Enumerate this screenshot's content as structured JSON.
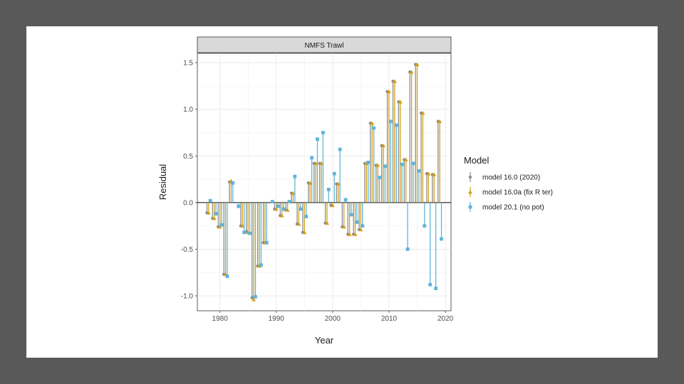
{
  "chart_data": {
    "type": "lollipop",
    "facet_title": "NMFS Trawl",
    "xlabel": "Year",
    "ylabel": "Residual",
    "xlim": [
      1976,
      2021
    ],
    "ylim": [
      -1.16,
      1.6
    ],
    "x_ticks": [
      1980,
      1990,
      2000,
      2010,
      2020
    ],
    "y_ticks": [
      -1.0,
      -0.5,
      0.0,
      0.5,
      1.0,
      1.5
    ],
    "y_tick_labels": [
      "-1.0",
      "-0.5",
      "0.0",
      "0.5",
      "1.0",
      "1.5"
    ],
    "x_tick_labels": [
      "1980",
      "1990",
      "2000",
      "2010",
      "2020"
    ],
    "legend_title": "Model",
    "series": [
      {
        "name": "model 16.0 (2020)",
        "color": "#8c8c8c",
        "shape": "circle",
        "offset": -0.3,
        "points": [
          [
            1978,
            -0.11
          ],
          [
            1979,
            -0.17
          ],
          [
            1980,
            -0.26
          ],
          [
            1981,
            -0.77
          ],
          [
            1982,
            0.22
          ],
          [
            1984,
            -0.25
          ],
          [
            1985,
            -0.31
          ],
          [
            1986,
            -1.02
          ],
          [
            1987,
            -0.68
          ],
          [
            1988,
            -0.43
          ],
          [
            1990,
            -0.07
          ],
          [
            1991,
            -0.14
          ],
          [
            1992,
            -0.08
          ],
          [
            1993,
            0.1
          ],
          [
            1994,
            -0.23
          ],
          [
            1995,
            -0.32
          ],
          [
            1996,
            0.21
          ],
          [
            1997,
            0.42
          ],
          [
            1998,
            0.42
          ],
          [
            1999,
            -0.22
          ],
          [
            2000,
            -0.03
          ],
          [
            2001,
            0.2
          ],
          [
            2002,
            -0.26
          ],
          [
            2003,
            -0.34
          ],
          [
            2004,
            -0.34
          ],
          [
            2005,
            -0.29
          ],
          [
            2006,
            0.42
          ],
          [
            2007,
            0.85
          ],
          [
            2008,
            0.4
          ],
          [
            2009,
            0.61
          ],
          [
            2010,
            1.19
          ],
          [
            2011,
            1.3
          ],
          [
            2012,
            1.08
          ],
          [
            2013,
            0.46
          ],
          [
            2014,
            1.4
          ],
          [
            2015,
            1.48
          ],
          [
            2016,
            0.96
          ],
          [
            2017,
            0.31
          ],
          [
            2018,
            0.3
          ],
          [
            2019,
            0.87
          ]
        ]
      },
      {
        "name": "model 16.0a (fix R ter)",
        "color": "#d4a017",
        "shape": "triangle",
        "offset": 0,
        "points": [
          [
            1978,
            -0.11
          ],
          [
            1979,
            -0.17
          ],
          [
            1980,
            -0.26
          ],
          [
            1981,
            -0.77
          ],
          [
            1982,
            0.23
          ],
          [
            1984,
            -0.25
          ],
          [
            1985,
            -0.32
          ],
          [
            1986,
            -1.04
          ],
          [
            1987,
            -0.68
          ],
          [
            1988,
            -0.43
          ],
          [
            1990,
            -0.07
          ],
          [
            1991,
            -0.14
          ],
          [
            1992,
            -0.08
          ],
          [
            1993,
            0.1
          ],
          [
            1994,
            -0.23
          ],
          [
            1995,
            -0.32
          ],
          [
            1996,
            0.21
          ],
          [
            1997,
            0.42
          ],
          [
            1998,
            0.42
          ],
          [
            1999,
            -0.22
          ],
          [
            2000,
            -0.03
          ],
          [
            2001,
            0.2
          ],
          [
            2002,
            -0.26
          ],
          [
            2003,
            -0.34
          ],
          [
            2004,
            -0.34
          ],
          [
            2005,
            -0.29
          ],
          [
            2006,
            0.42
          ],
          [
            2007,
            0.85
          ],
          [
            2008,
            0.4
          ],
          [
            2009,
            0.61
          ],
          [
            2010,
            1.19
          ],
          [
            2011,
            1.3
          ],
          [
            2012,
            1.08
          ],
          [
            2013,
            0.46
          ],
          [
            2014,
            1.4
          ],
          [
            2015,
            1.48
          ],
          [
            2016,
            0.96
          ],
          [
            2017,
            0.31
          ],
          [
            2018,
            0.3
          ],
          [
            2019,
            0.87
          ]
        ]
      },
      {
        "name": "model 20.1 (no pot)",
        "color": "#5fb4d9",
        "shape": "square",
        "offset": 0.3,
        "points": [
          [
            1978,
            0.02
          ],
          [
            1979,
            -0.12
          ],
          [
            1980,
            -0.24
          ],
          [
            1981,
            -0.79
          ],
          [
            1982,
            0.21
          ],
          [
            1983,
            -0.04
          ],
          [
            1984,
            -0.32
          ],
          [
            1985,
            -0.33
          ],
          [
            1986,
            -1.01
          ],
          [
            1987,
            -0.67
          ],
          [
            1988,
            -0.43
          ],
          [
            1989,
            0.01
          ],
          [
            1990,
            -0.04
          ],
          [
            1991,
            -0.07
          ],
          [
            1992,
            0.01
          ],
          [
            1993,
            0.28
          ],
          [
            1994,
            -0.07
          ],
          [
            1995,
            -0.15
          ],
          [
            1996,
            0.48
          ],
          [
            1997,
            0.68
          ],
          [
            1998,
            0.75
          ],
          [
            1999,
            0.14
          ],
          [
            2000,
            0.31
          ],
          [
            2001,
            0.57
          ],
          [
            2002,
            0.03
          ],
          [
            2003,
            -0.13
          ],
          [
            2004,
            -0.21
          ],
          [
            2005,
            -0.25
          ],
          [
            2006,
            0.43
          ],
          [
            2007,
            0.8
          ],
          [
            2008,
            0.27
          ],
          [
            2009,
            0.39
          ],
          [
            2010,
            0.87
          ],
          [
            2011,
            0.83
          ],
          [
            2012,
            0.41
          ],
          [
            2013,
            -0.5
          ],
          [
            2014,
            0.42
          ],
          [
            2015,
            0.34
          ],
          [
            2016,
            -0.25
          ],
          [
            2017,
            -0.88
          ],
          [
            2018,
            -0.92
          ],
          [
            2019,
            -0.39
          ]
        ]
      }
    ]
  }
}
